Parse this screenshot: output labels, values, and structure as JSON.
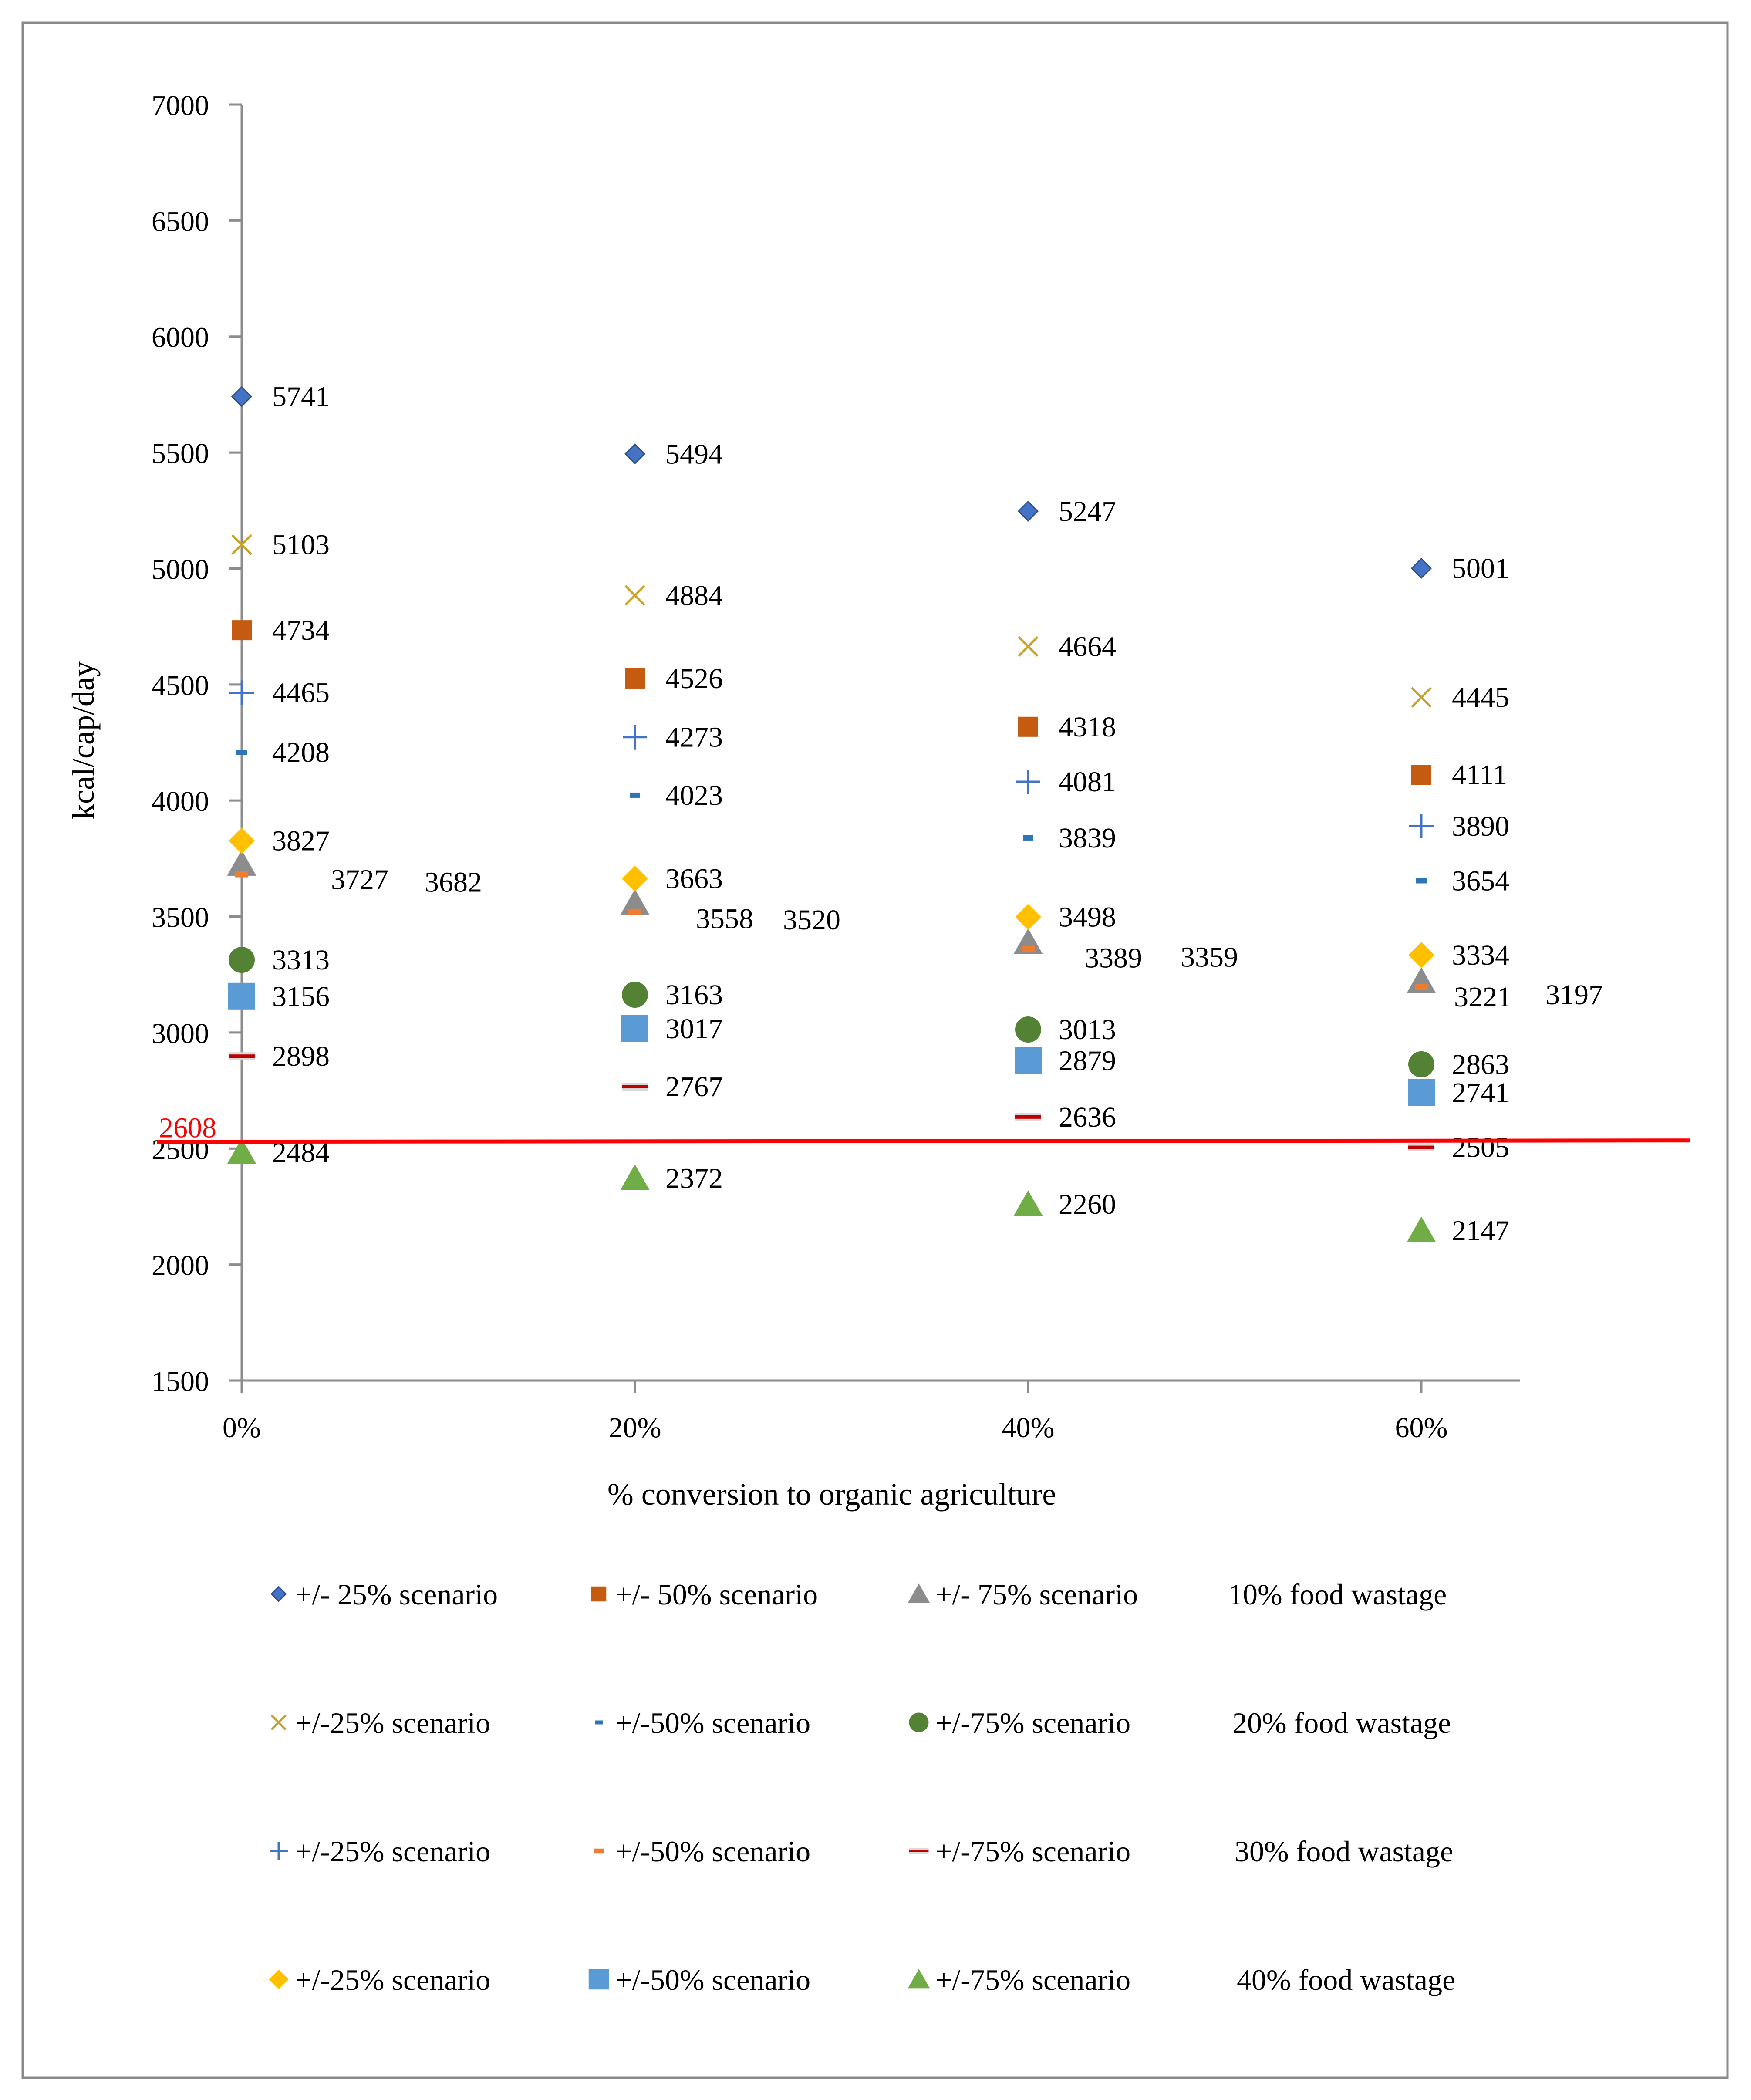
{
  "chart_data": {
    "type": "scatter",
    "ylabel": "kcal/cap/day",
    "xlabel": "% conversion to organic agriculture",
    "categories": [
      "0%",
      "20%",
      "40%",
      "60%"
    ],
    "ylim": [
      1500,
      7000
    ],
    "yticks": [
      1500,
      2000,
      2500,
      3000,
      3500,
      4000,
      4500,
      5000,
      5500,
      6000,
      6500,
      7000
    ],
    "grid": false,
    "legend_position": "bottom",
    "reference_line": {
      "value": 2608,
      "label": "2608",
      "color": "#ff0000"
    },
    "series": [
      {
        "id": "s10_25",
        "name": "+/- 25% scenario",
        "group": "10% food wastage",
        "marker": "diamond-small",
        "color": "#4472C4",
        "values": [
          5741,
          5494,
          5247,
          5001
        ],
        "labels": [
          "5741",
          "5494",
          "5247",
          "5001"
        ]
      },
      {
        "id": "s10_50",
        "name": "+/- 50% scenario",
        "group": "10% food wastage",
        "marker": "square-small",
        "color": "#C55A11",
        "values": [
          4734,
          4526,
          4318,
          4111
        ],
        "labels": [
          "4734",
          "4526",
          "4318",
          "4111"
        ]
      },
      {
        "id": "s10_75",
        "name": "+/- 75% scenario",
        "group": "10% food wastage",
        "marker": "triangle",
        "color": "#8C8C8C",
        "values": [
          3727,
          3558,
          3389,
          3221
        ],
        "labels": [
          "3727",
          "3558",
          "3389",
          "3221"
        ]
      },
      {
        "id": "s20_25",
        "name": "+/-25% scenario",
        "group": "20% food wastage",
        "marker": "x",
        "color": "#C9A227",
        "values": [
          5103,
          4884,
          4664,
          4445
        ],
        "labels": [
          "5103",
          "4884",
          "4664",
          "4445"
        ]
      },
      {
        "id": "s20_50",
        "name": "+/-50% scenario",
        "group": "20% food wastage",
        "marker": "dash",
        "color": "#2E75B6",
        "values": [
          4208,
          4023,
          3839,
          3654
        ],
        "labels": [
          "4208",
          "4023",
          "3839",
          "3654"
        ]
      },
      {
        "id": "s20_75",
        "name": "+/-75% scenario",
        "group": "20% food wastage",
        "marker": "circle",
        "color": "#548235",
        "values": [
          3313,
          3163,
          3013,
          2863
        ],
        "labels": [
          "3313",
          "3163",
          "3013",
          "2863"
        ]
      },
      {
        "id": "s30_25",
        "name": "+/-25% scenario",
        "group": "30% food wastage",
        "marker": "plus",
        "color": "#4472C4",
        "values": [
          4465,
          4273,
          4081,
          3890
        ],
        "labels": [
          "4465",
          "4273",
          "4081",
          "3890"
        ]
      },
      {
        "id": "s30_50",
        "name": "+/-50% scenario",
        "group": "30% food wastage",
        "marker": "dash-orange",
        "color": "#ED7D31",
        "values": [
          3682,
          3520,
          3359,
          3197
        ],
        "labels": [
          "3682",
          "3520",
          "3359",
          "3197"
        ]
      },
      {
        "id": "s30_75",
        "name": "+/-75% scenario",
        "group": "30% food wastage",
        "marker": "dash-red",
        "color": "#C00000",
        "values": [
          2898,
          2767,
          2636,
          2505
        ],
        "labels": [
          "2898",
          "2767",
          "2636",
          "2505"
        ]
      },
      {
        "id": "s40_25",
        "name": "+/-25% scenario",
        "group": "40% food wastage",
        "marker": "diamond",
        "color": "#FFC000",
        "values": [
          3827,
          3663,
          3498,
          3334
        ],
        "labels": [
          "3827",
          "3663",
          "3498",
          "3334"
        ]
      },
      {
        "id": "s40_50",
        "name": "+/-50% scenario",
        "group": "40% food wastage",
        "marker": "square",
        "color": "#5B9BD5",
        "values": [
          3156,
          3017,
          2879,
          2741
        ],
        "labels": [
          "3156",
          "3017",
          "2879",
          "2741"
        ]
      },
      {
        "id": "s40_75",
        "name": "+/-75% scenario",
        "group": "40% food wastage",
        "marker": "triangle",
        "color": "#70AD47",
        "values": [
          2484,
          2372,
          2260,
          2147
        ],
        "labels": [
          "2484",
          "2372",
          "2260",
          "2147"
        ]
      }
    ],
    "legend_rows": [
      {
        "series": [
          "s10_25",
          "s10_50",
          "s10_75"
        ],
        "group_label": "10% food wastage"
      },
      {
        "series": [
          "s20_25",
          "s20_50",
          "s20_75"
        ],
        "group_label": "20% food wastage"
      },
      {
        "series": [
          "s30_25",
          "s30_50",
          "s30_75"
        ],
        "group_label": "30% food wastage"
      },
      {
        "series": [
          "s40_25",
          "s40_50",
          "s40_75"
        ],
        "group_label": "40% food wastage"
      }
    ]
  }
}
